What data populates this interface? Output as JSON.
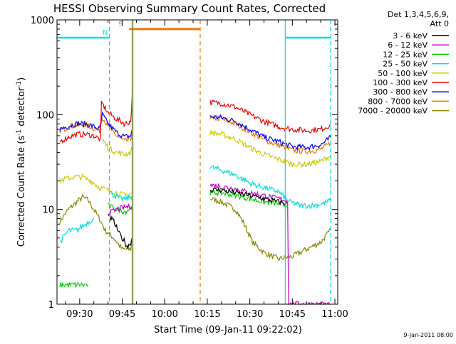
{
  "chart_data": {
    "type": "line",
    "title": "HESSI Observing Summary Count Rates, Corrected",
    "xlabel": "Start Time (09-Jan-11 09:22:02)",
    "ylabel": "Corrected Count Rate (s⁻¹ detector⁻¹)",
    "ylabel_parts": {
      "a": "Corrected Count Rate (s",
      "a_sup": "-1",
      "b": " detector",
      "b_sup": "-1",
      "c": ")"
    },
    "y_scale": "log",
    "ylim": [
      1,
      1000
    ],
    "y_ticks": [
      {
        "value": 1,
        "label": "1"
      },
      {
        "value": 10,
        "label": "10"
      },
      {
        "value": 100,
        "label": "100"
      },
      {
        "value": 1000,
        "label": "1000"
      }
    ],
    "x_ticks": [
      {
        "value": "09:30",
        "label": "09:30"
      },
      {
        "value": "09:45",
        "label": "09:45"
      },
      {
        "value": "10:00",
        "label": "10:00"
      },
      {
        "value": "10:15",
        "label": "10:15"
      },
      {
        "value": "10:30",
        "label": "10:30"
      },
      {
        "value": "10:45",
        "label": "10:45"
      },
      {
        "value": "11:00",
        "label": "11:00"
      }
    ],
    "xlim": [
      "09:22",
      "11:01"
    ],
    "legend": {
      "placement": "right",
      "header": [
        "Det 1,3,4,5,6,9,",
        "Att 0"
      ]
    },
    "series": [
      {
        "name": "3 - 6 keV",
        "color": "#000000",
        "segments": [
          [
            [
              "09:40",
              8.5
            ],
            [
              "09:42",
              7.5
            ],
            [
              "09:44",
              5.5
            ],
            [
              "09:46",
              4.5
            ],
            [
              "09:47",
              4
            ],
            [
              "09:48",
              4.5
            ],
            [
              "09:48.5",
              5
            ]
          ],
          [
            [
              "10:16",
              16
            ],
            [
              "10:20",
              16
            ],
            [
              "10:25",
              15
            ],
            [
              "10:30",
              14
            ],
            [
              "10:35",
              13
            ],
            [
              "10:40",
              12
            ],
            [
              "10:43",
              11.5
            ]
          ]
        ]
      },
      {
        "name": "6 - 12 keV",
        "color": "#cc00cc",
        "segments": [
          [
            [
              "09:40",
              9
            ],
            [
              "09:43",
              10
            ],
            [
              "09:46",
              10.5
            ],
            [
              "09:48.5",
              11
            ]
          ],
          [
            [
              "10:16",
              18
            ],
            [
              "10:20",
              17.5
            ],
            [
              "10:25",
              16.5
            ],
            [
              "10:30",
              15
            ],
            [
              "10:35",
              14
            ],
            [
              "10:40",
              13
            ],
            [
              "10:43",
              12.5
            ],
            [
              "10:44",
              1
            ],
            [
              "10:58.5",
              1
            ]
          ]
        ]
      },
      {
        "name": "12 - 25 keV",
        "color": "#00cc00",
        "segments": [
          [
            [
              "09:23",
              1.6
            ],
            [
              "09:33",
              1.6
            ]
          ],
          [
            [
              "09:40",
              11
            ],
            [
              "09:43",
              10
            ],
            [
              "09:46",
              9.5
            ],
            [
              "09:48.5",
              10.5
            ]
          ],
          [
            [
              "10:16",
              15
            ],
            [
              "10:20",
              15
            ],
            [
              "10:25",
              14
            ],
            [
              "10:30",
              13
            ],
            [
              "10:35",
              12
            ],
            [
              "10:40",
              11.5
            ],
            [
              "10:43",
              11
            ]
          ]
        ]
      },
      {
        "name": "25 - 50 keV",
        "color": "#00dddd",
        "segments": [
          [
            [
              "09:23",
              4.5
            ],
            [
              "09:26",
              6
            ],
            [
              "09:29",
              6
            ],
            [
              "09:32",
              7
            ],
            [
              "09:35",
              8
            ]
          ],
          [
            [
              "09:41",
              15
            ],
            [
              "09:44",
              13
            ],
            [
              "09:47",
              13
            ],
            [
              "09:48.5",
              14
            ]
          ],
          [
            [
              "10:16",
              28
            ],
            [
              "10:20",
              26
            ],
            [
              "10:25",
              23
            ],
            [
              "10:30",
              19
            ],
            [
              "10:35",
              17
            ],
            [
              "10:40",
              15.5
            ],
            [
              "10:44",
              12
            ],
            [
              "10:48",
              11
            ],
            [
              "10:52",
              11
            ],
            [
              "10:56",
              11.5
            ],
            [
              "10:58.5",
              12.5
            ]
          ]
        ]
      },
      {
        "name": "50 - 100 keV",
        "color": "#cccc00",
        "segments": [
          [
            [
              "09:23",
              20
            ],
            [
              "09:25",
              21
            ],
            [
              "09:28",
              22
            ],
            [
              "09:31",
              22
            ],
            [
              "09:34",
              20
            ],
            [
              "09:37",
              17
            ],
            [
              "09:40",
              16
            ],
            [
              "09:43",
              15
            ],
            [
              "09:46",
              14
            ],
            [
              "09:48.5",
              15
            ]
          ],
          [
            [
              "09:38",
              55
            ],
            [
              "09:40",
              45
            ],
            [
              "09:43",
              40
            ],
            [
              "09:46",
              38
            ],
            [
              "09:48",
              40
            ],
            [
              "09:48.5",
              45
            ]
          ],
          [
            [
              "10:16",
              65
            ],
            [
              "10:20",
              62
            ],
            [
              "10:25",
              55
            ],
            [
              "10:30",
              45
            ],
            [
              "10:35",
              38
            ],
            [
              "10:40",
              34
            ],
            [
              "10:45",
              30
            ],
            [
              "10:50",
              30
            ],
            [
              "10:55",
              32
            ],
            [
              "10:58.5",
              37
            ]
          ]
        ]
      },
      {
        "name": "100 - 300 keV",
        "color": "#ee0000",
        "segments": [
          [
            [
              "09:23",
              52
            ],
            [
              "09:26",
              58
            ],
            [
              "09:29",
              62
            ],
            [
              "09:32",
              62
            ],
            [
              "09:35",
              60
            ],
            [
              "09:37",
              55
            ],
            [
              "09:38",
              130
            ],
            [
              "09:40",
              105
            ],
            [
              "09:43",
              90
            ],
            [
              "09:46",
              80
            ],
            [
              "09:48",
              85
            ],
            [
              "09:48.5",
              160
            ]
          ],
          [
            [
              "10:16",
              135
            ],
            [
              "10:20",
              132
            ],
            [
              "10:25",
              120
            ],
            [
              "10:30",
              100
            ],
            [
              "10:35",
              85
            ],
            [
              "10:40",
              75
            ],
            [
              "10:45",
              70
            ],
            [
              "10:50",
              68
            ],
            [
              "10:55",
              70
            ],
            [
              "10:58.5",
              78
            ]
          ]
        ]
      },
      {
        "name": "300 - 800 keV",
        "color": "#0000ee",
        "segments": [
          [
            [
              "09:23",
              70
            ],
            [
              "09:26",
              76
            ],
            [
              "09:29",
              80
            ],
            [
              "09:32",
              80
            ],
            [
              "09:35",
              75
            ],
            [
              "09:37",
              70
            ],
            [
              "09:38",
              100
            ],
            [
              "09:40",
              80
            ],
            [
              "09:43",
              65
            ],
            [
              "09:46",
              58
            ],
            [
              "09:48",
              60
            ],
            [
              "09:48.5",
              70
            ]
          ],
          [
            [
              "10:16",
              95
            ],
            [
              "10:20",
              93
            ],
            [
              "10:25",
              85
            ],
            [
              "10:30",
              70
            ],
            [
              "10:35",
              58
            ],
            [
              "10:40",
              52
            ],
            [
              "10:45",
              46
            ],
            [
              "10:50",
              45
            ],
            [
              "10:55",
              48
            ],
            [
              "10:58.5",
              57
            ]
          ]
        ]
      },
      {
        "name": "800 - 7000 keV",
        "color": "#ee7700",
        "segments": [
          [
            [
              "09:23",
              68
            ],
            [
              "09:26",
              74
            ],
            [
              "09:29",
              78
            ],
            [
              "09:32",
              78
            ],
            [
              "09:35",
              72
            ],
            [
              "09:37",
              68
            ],
            [
              "09:38",
              95
            ],
            [
              "09:40",
              75
            ],
            [
              "09:43",
              60
            ],
            [
              "09:46",
              52
            ],
            [
              "09:48",
              55
            ],
            [
              "09:48.5",
              65
            ]
          ],
          [
            [
              "10:16",
              92
            ],
            [
              "10:20",
              90
            ],
            [
              "10:25",
              80
            ],
            [
              "10:30",
              66
            ],
            [
              "10:35",
              54
            ],
            [
              "10:40",
              48
            ],
            [
              "10:45",
              42
            ],
            [
              "10:50",
              41
            ],
            [
              "10:55",
              43
            ],
            [
              "10:58.5",
              50
            ]
          ]
        ]
      },
      {
        "name": "7000 - 20000 keV",
        "color": "#888800",
        "segments": [
          [
            [
              "09:23",
              7.5
            ],
            [
              "09:26",
              10
            ],
            [
              "09:29",
              12
            ],
            [
              "09:31",
              13.5
            ],
            [
              "09:33",
              12.5
            ],
            [
              "09:35",
              10
            ],
            [
              "09:37",
              8
            ],
            [
              "09:39",
              6
            ],
            [
              "09:42",
              5
            ],
            [
              "09:45",
              3.8
            ],
            [
              "09:48",
              3.8
            ],
            [
              "09:48.5",
              5
            ]
          ],
          [
            [
              "10:16",
              13
            ],
            [
              "10:20",
              12
            ],
            [
              "10:25",
              10
            ],
            [
              "10:28",
              7
            ],
            [
              "10:31",
              4.5
            ],
            [
              "10:35",
              3.5
            ],
            [
              "10:40",
              3
            ],
            [
              "10:45",
              3.2
            ],
            [
              "10:50",
              3.8
            ],
            [
              "10:55",
              4.5
            ],
            [
              "10:58.5",
              6
            ]
          ]
        ]
      }
    ],
    "annotations": [
      {
        "kind": "bar",
        "color": "#00dddd",
        "x1": "09:22",
        "x2": "09:40.5",
        "y": 650,
        "label": "N"
      },
      {
        "kind": "bar",
        "color": "#00dddd",
        "x1": "10:42.5",
        "x2": "10:58.5",
        "y": 650,
        "label": ""
      },
      {
        "kind": "bar",
        "color": "#ee7700",
        "x1": "09:47.5",
        "x2": "10:12.5",
        "y": 800,
        "label": "S",
        "thick": true
      },
      {
        "kind": "vline",
        "color": "#00dddd",
        "x": "09:40.5",
        "dashed": true
      },
      {
        "kind": "vline",
        "color": "#00dddd",
        "x": "09:48.8",
        "dashed": false
      },
      {
        "kind": "vline",
        "color": "#ee7700",
        "x": "09:48.5",
        "dashed": false
      },
      {
        "kind": "vline",
        "color": "#ee7700",
        "x": "10:12.5",
        "dashed": true
      },
      {
        "kind": "vline",
        "color": "#00dddd",
        "x": "10:42.5",
        "dashed": false
      },
      {
        "kind": "vline",
        "color": "#00dddd",
        "x": "10:58.5",
        "dashed": true
      }
    ],
    "grid": false
  },
  "footer": {
    "date_stamp": "9-Jan-2011 08:00"
  }
}
